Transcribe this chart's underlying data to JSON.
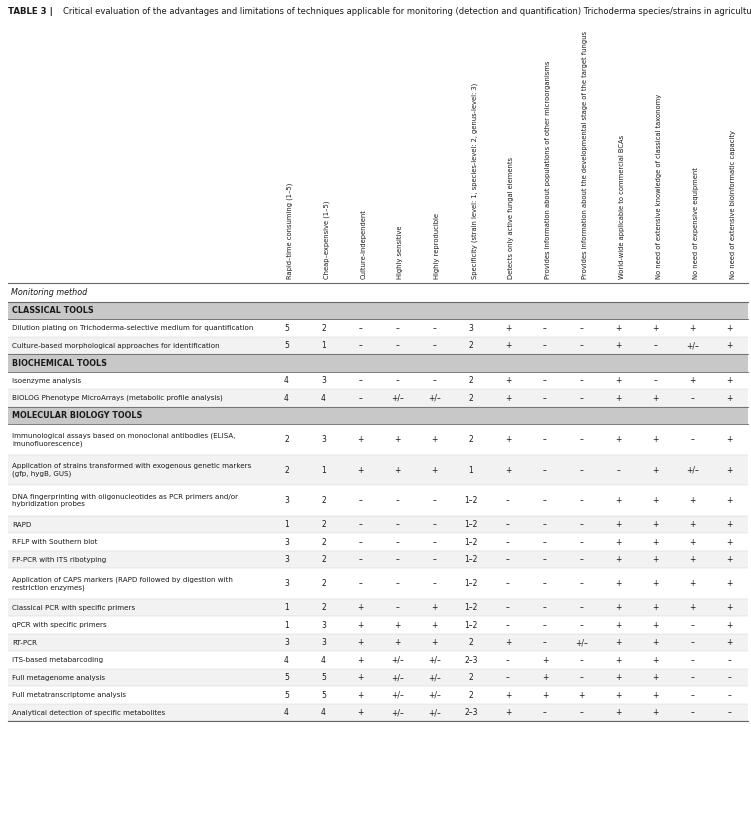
{
  "title_bold": "TABLE 3",
  "title_rest": "Critical evaluation of the advantages and limitations of techniques applicable for monitoring (detection and quantification) Trichoderma species/strains in agricultural environments.",
  "col_headers": [
    "Rapid–time consuming (1–5)",
    "Cheap–expensive (1–5)",
    "Culture-independent",
    "Highly sensitive",
    "Highly reproducible",
    "Specificity (strain level: 1, species-level: 2, genus-level: 3)",
    "Detects only active fungal elements",
    "Provides information about populations of other microorganisms",
    "Provides information about the developmental stage of the target fungus",
    "World-wide applicable to commercial BCAs",
    "No need of extensive knowledge of classical taxonomy",
    "No need of expensive equipment",
    "No need of extensive bioinformatic capacity"
  ],
  "row_label_header": "Monitoring method",
  "sections": [
    {
      "section_name": "CLASSICAL TOOLS",
      "rows": [
        {
          "label": "Dilution plating on Trichoderma-selective medium for quantification",
          "nlines": 1,
          "values": [
            "5",
            "2",
            "–",
            "–",
            "–",
            "3",
            "+",
            "–",
            "–",
            "+",
            "+",
            "+",
            "+"
          ]
        },
        {
          "label": "Culture-based morphological approaches for identification",
          "nlines": 1,
          "values": [
            "5",
            "1",
            "–",
            "–",
            "–",
            "2",
            "+",
            "–",
            "–",
            "+",
            "–",
            "+/–",
            "+"
          ]
        }
      ]
    },
    {
      "section_name": "BIOCHEMICAL TOOLS",
      "rows": [
        {
          "label": "Isoenzyme analysis",
          "nlines": 1,
          "values": [
            "4",
            "3",
            "–",
            "–",
            "–",
            "2",
            "+",
            "–",
            "–",
            "+",
            "–",
            "+",
            "+"
          ]
        },
        {
          "label": "BIOLOG Phenotype MicroArrays (metabolic profile analysis)",
          "nlines": 1,
          "values": [
            "4",
            "4",
            "–",
            "+/–",
            "+/–",
            "2",
            "+",
            "–",
            "–",
            "+",
            "+",
            "–",
            "+"
          ]
        }
      ]
    },
    {
      "section_name": "MOLECULAR BIOLOGY TOOLS",
      "rows": [
        {
          "label": "Immunological assays based on monoclonal antibodies (ELISA,\nimunofluorescence)",
          "nlines": 2,
          "values": [
            "2",
            "3",
            "+",
            "+",
            "+",
            "2",
            "+",
            "–",
            "–",
            "+",
            "+",
            "–",
            "+"
          ]
        },
        {
          "label": "Application of strains transformed with exogenous genetic markers\n(gfp, hygB, GUS)",
          "nlines": 2,
          "values": [
            "2",
            "1",
            "+",
            "+",
            "+",
            "1",
            "+",
            "–",
            "–",
            "–",
            "+",
            "+/–",
            "+"
          ]
        },
        {
          "label": "DNA fingerprinting with oligonucleotides as PCR primers and/or\nhybridization probes",
          "nlines": 2,
          "values": [
            "3",
            "2",
            "–",
            "–",
            "–",
            "1–2",
            "–",
            "–",
            "–",
            "+",
            "+",
            "+",
            "+"
          ]
        },
        {
          "label": "RAPD",
          "nlines": 1,
          "values": [
            "1",
            "2",
            "–",
            "–",
            "–",
            "1–2",
            "–",
            "–",
            "–",
            "+",
            "+",
            "+",
            "+"
          ]
        },
        {
          "label": "RFLP with Southern blot",
          "nlines": 1,
          "values": [
            "3",
            "2",
            "–",
            "–",
            "–",
            "1–2",
            "–",
            "–",
            "–",
            "+",
            "+",
            "+",
            "+"
          ]
        },
        {
          "label": "FP-PCR with ITS ribotyping",
          "nlines": 1,
          "values": [
            "3",
            "2",
            "–",
            "–",
            "–",
            "1–2",
            "–",
            "–",
            "–",
            "+",
            "+",
            "+",
            "+"
          ]
        },
        {
          "label": "Application of CAPS markers (RAPD followed by digestion with\nrestriction enzymes)",
          "nlines": 2,
          "values": [
            "3",
            "2",
            "–",
            "–",
            "–",
            "1–2",
            "–",
            "–",
            "–",
            "+",
            "+",
            "+",
            "+"
          ]
        },
        {
          "label": "Classical PCR with specific primers",
          "nlines": 1,
          "values": [
            "1",
            "2",
            "+",
            "–",
            "+",
            "1–2",
            "–",
            "–",
            "–",
            "+",
            "+",
            "+",
            "+"
          ]
        },
        {
          "label": "qPCR with specific primers",
          "nlines": 1,
          "values": [
            "1",
            "3",
            "+",
            "+",
            "+",
            "1–2",
            "–",
            "–",
            "–",
            "+",
            "+",
            "–",
            "+"
          ]
        },
        {
          "label": "RT-PCR",
          "nlines": 1,
          "values": [
            "3",
            "3",
            "+",
            "+",
            "+",
            "2",
            "+",
            "–",
            "+/–",
            "+",
            "+",
            "–",
            "+"
          ]
        },
        {
          "label": "ITS-based metabarcoding",
          "nlines": 1,
          "values": [
            "4",
            "4",
            "+",
            "+/–",
            "+/–",
            "2–3",
            "–",
            "+",
            "–",
            "+",
            "+",
            "–",
            "–"
          ]
        },
        {
          "label": "Full metagenome analysis",
          "nlines": 1,
          "values": [
            "5",
            "5",
            "+",
            "+/–",
            "+/–",
            "2",
            "–",
            "+",
            "–",
            "+",
            "+",
            "–",
            "–"
          ]
        },
        {
          "label": "Full metatranscriptome analysis",
          "nlines": 1,
          "values": [
            "5",
            "5",
            "+",
            "+/–",
            "+/–",
            "2",
            "+",
            "+",
            "+",
            "+",
            "+",
            "–",
            "–"
          ]
        },
        {
          "label": "Analytical detection of specific metabolites",
          "nlines": 1,
          "values": [
            "4",
            "4",
            "+",
            "+/–",
            "+/–",
            "2–3",
            "+",
            "–",
            "–",
            "+",
            "+",
            "–",
            "–"
          ]
        }
      ]
    }
  ],
  "section_header_bg": "#c8c8c8",
  "alt_row_bg": "#f2f2f2",
  "white_row_bg": "#ffffff",
  "text_color": "#1a1a1a",
  "border_color": "#666666",
  "light_border": "#cccccc"
}
